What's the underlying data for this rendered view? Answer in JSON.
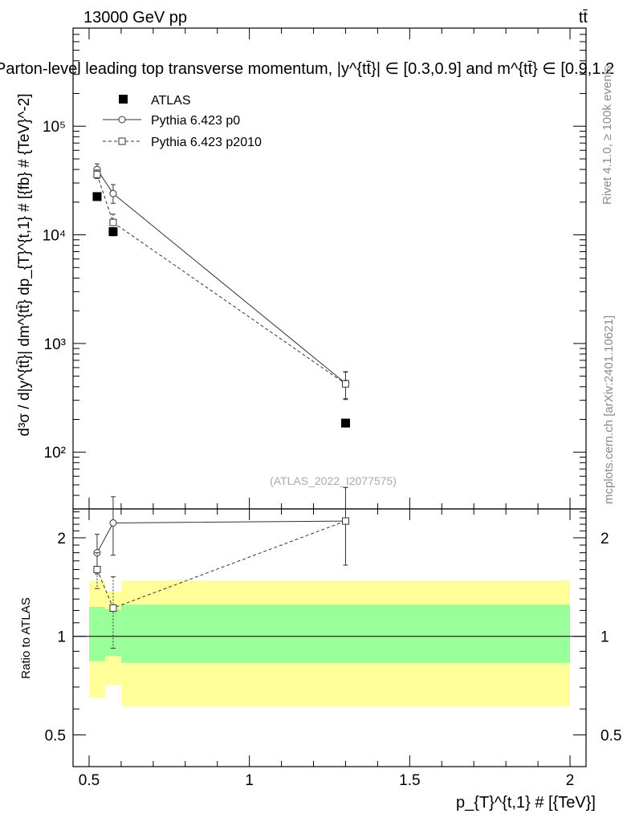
{
  "header": {
    "energy": "13000 GeV pp",
    "process": "tt̄"
  },
  "side_text": {
    "rivet": "Rivet 4.1.0, ≥ 100k events",
    "mcplots": "mcplots.cern.ch [arXiv:2401.10621]"
  },
  "chart_data": [
    {
      "type": "scatter",
      "role": "main",
      "title": "Parton-level leading top transverse momentum, |y^{tt̄}| ∈ [0.3,0.9] and m^{tt̄} ∈ [0.9,1.2",
      "ylabel": "d³σ / d|y^{tt̄}| dm^{tt̄} dp_{T}^{t,1} # [{fb} # {TeV}^-2]",
      "yscale": "log",
      "xlim": [
        0.45,
        2.05
      ],
      "ylim": [
        30,
        800000
      ],
      "ytick_labels": [
        "10²",
        "10³",
        "10⁴",
        "10⁵"
      ],
      "watermark": "(ATLAS_2022_I2077575)",
      "legend": {
        "placement": "top-left",
        "entries": [
          "ATLAS",
          "Pythia 6.423 p0",
          "Pythia 6.423 p2010"
        ]
      },
      "series": [
        {
          "name": "ATLAS",
          "style": "square-filled",
          "x": [
            0.525,
            0.575,
            1.3
          ],
          "y": [
            22500,
            10700,
            185
          ],
          "yerr_lo": [
            0,
            900,
            0
          ],
          "yerr_hi": [
            0,
            900,
            0
          ]
        },
        {
          "name": "Pythia 6.423 p0",
          "style": "solid-circle",
          "x": [
            0.525,
            0.575,
            1.3
          ],
          "y": [
            40000,
            24000,
            430
          ],
          "yerr_lo": [
            4000,
            4500,
            120
          ],
          "yerr_hi": [
            5000,
            5000,
            120
          ]
        },
        {
          "name": "Pythia 6.423 p2010",
          "style": "dashed-square",
          "x": [
            0.525,
            0.575,
            1.3
          ],
          "y": [
            36000,
            13000,
            425
          ],
          "yerr_lo": [
            3000,
            2500,
            120
          ],
          "yerr_hi": [
            3500,
            2500,
            120
          ]
        }
      ]
    },
    {
      "type": "scatter",
      "role": "ratio",
      "ylabel": "Ratio to ATLAS",
      "xlabel": "p_{T}^{t,1} # [{TeV}]",
      "yscale": "log",
      "xlim": [
        0.45,
        2.05
      ],
      "ylim": [
        0.4,
        2.45
      ],
      "xtick_labels": [
        "0.5",
        "1",
        "1.5",
        "2"
      ],
      "ytick_labels": [
        "0.5",
        "1",
        "2"
      ],
      "bands": {
        "edges": [
          0.5,
          0.55,
          0.6,
          2.0
        ],
        "yellow_lo": [
          0.65,
          0.71,
          0.61
        ],
        "yellow_hi": [
          1.48,
          1.37,
          1.48
        ],
        "green_lo": [
          0.84,
          0.87,
          0.83
        ],
        "green_hi": [
          1.23,
          1.21,
          1.25
        ]
      },
      "series": [
        {
          "name": "Pythia 6.423 p0",
          "style": "solid-circle",
          "x": [
            0.525,
            0.575,
            1.3
          ],
          "y": [
            1.8,
            2.22,
            2.25
          ],
          "yerr_lo": [
            0.25,
            0.45,
            0.6
          ],
          "yerr_hi": [
            0.25,
            0.45,
            0.6
          ]
        },
        {
          "name": "Pythia 6.423 p2010",
          "style": "dashed-square",
          "x": [
            0.525,
            0.575,
            1.3
          ],
          "y": [
            1.6,
            1.22,
            2.25
          ],
          "yerr_lo": [
            0.2,
            0.3,
            0.6
          ],
          "yerr_hi": [
            0.2,
            0.3,
            0.6
          ]
        }
      ]
    }
  ]
}
